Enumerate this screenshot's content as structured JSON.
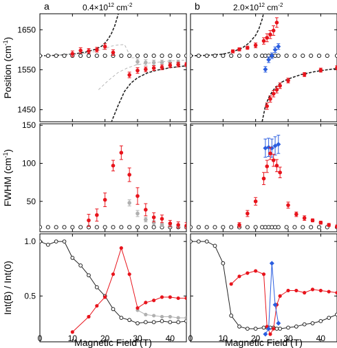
{
  "chart_data": {
    "type": "scatter",
    "xlabel": "Magnetic Field (T)",
    "xlim": [
      0,
      45
    ],
    "xticks": [
      0,
      10,
      20,
      30,
      40
    ],
    "colors": {
      "red": "#e8141c",
      "blue": "#2b5ee0",
      "gray": "#b0b0b0",
      "black": "#222222"
    },
    "panels": [
      {
        "col": 0,
        "label": "a",
        "density": "0.4×10",
        "density_exp": "12",
        "density_unit": " cm",
        "density_unit_exp": "-2"
      },
      {
        "col": 1,
        "label": "b",
        "density": "2.0×10",
        "density_exp": "12",
        "density_unit": " cm",
        "density_unit_exp": "-2"
      }
    ],
    "rows": [
      {
        "id": "position",
        "ylabel": "Position (cm",
        "ylabel_exp": "-1",
        "ylabel_end": ")",
        "ylim": [
          1420,
          1690
        ],
        "yticks": [
          1450,
          1550,
          1650
        ]
      },
      {
        "id": "fwhm",
        "ylabel": "FWHM (cm",
        "ylabel_exp": "-1",
        "ylabel_end": ")",
        "ylim": [
          10,
          152
        ],
        "yticks": [
          50,
          100,
          150
        ]
      },
      {
        "id": "int",
        "ylabel": "Int(B) / Int(0)",
        "ylabel_exp": "",
        "ylabel_end": "",
        "ylim": [
          0.08,
          1.07
        ],
        "yticks": [
          0.5,
          1.0
        ],
        "ytick_labels": [
          "0.5",
          "1.0"
        ]
      }
    ],
    "series": [
      {
        "row": 0,
        "col": 0,
        "kind": "dashed",
        "color": "black",
        "x": [
          0,
          5,
          10,
          14,
          17,
          19,
          20,
          21,
          22,
          23,
          24,
          25,
          25.5
        ],
        "y": [
          1585,
          1586,
          1589,
          1594,
          1601,
          1609,
          1617,
          1627,
          1641,
          1660,
          1687,
          1725,
          1760
        ]
      },
      {
        "row": 0,
        "col": 0,
        "kind": "dashed",
        "color": "black",
        "x": [
          20,
          21,
          22,
          24,
          26,
          28,
          30,
          33,
          36,
          40,
          45
        ],
        "y": [
          1380,
          1406,
          1420,
          1460,
          1496,
          1517,
          1530,
          1542,
          1549,
          1555,
          1560
        ]
      },
      {
        "row": 0,
        "col": 0,
        "kind": "thin-dashed",
        "color": "gray",
        "x": [
          0,
          10,
          15,
          18,
          20,
          22,
          24,
          26,
          28,
          30
        ],
        "y": [
          1585,
          1588,
          1592,
          1598,
          1603,
          1609,
          1612,
          1613,
          1580,
          1580
        ]
      },
      {
        "row": 0,
        "col": 0,
        "kind": "thin-dashed",
        "color": "gray",
        "x": [
          18,
          21,
          24,
          27,
          30,
          35,
          40,
          45
        ],
        "y": [
          1500,
          1523,
          1543,
          1555,
          1563,
          1568,
          1572,
          1574
        ]
      },
      {
        "row": 0,
        "col": 0,
        "kind": "open",
        "color": "black",
        "x": [
          0,
          2.5,
          5,
          7.5,
          10,
          12.5,
          15,
          17.5,
          20,
          22.5,
          25,
          27.5,
          30,
          32.5,
          35,
          37.5,
          40,
          42.5,
          45
        ],
        "y": [
          1585,
          1585,
          1585,
          1585,
          1585,
          1585,
          1585,
          1585,
          1585,
          1585,
          1585,
          1585,
          1585,
          1585,
          1585,
          1585,
          1585,
          1585,
          1585
        ]
      },
      {
        "row": 0,
        "col": 0,
        "kind": "errpoints",
        "color": "gray",
        "x": [
          30,
          32.5,
          35,
          37.5,
          40,
          42.5
        ],
        "y": [
          1570,
          1568,
          1568,
          1568,
          1568,
          1568
        ],
        "err": [
          7,
          7,
          6,
          6,
          6,
          6
        ]
      },
      {
        "row": 0,
        "col": 0,
        "kind": "errpoints",
        "color": "red",
        "x": [
          10,
          12.5,
          15,
          17.5,
          20,
          22.5
        ],
        "y": [
          1590,
          1598,
          1597,
          1600,
          1608,
          1593
        ],
        "err": [
          7,
          7,
          6,
          6,
          7,
          7
        ]
      },
      {
        "row": 0,
        "col": 0,
        "kind": "errpoints",
        "color": "red",
        "x": [
          27.5,
          30,
          32.5,
          35,
          37.5,
          40,
          42.5,
          45
        ],
        "y": [
          1537,
          1548,
          1551,
          1554,
          1556,
          1561,
          1563,
          1563
        ],
        "err": [
          7,
          7,
          6,
          6,
          6,
          6,
          6,
          5
        ]
      },
      {
        "row": 0,
        "col": 1,
        "kind": "dashed",
        "color": "black",
        "x": [
          0,
          5,
          10,
          13,
          16,
          18,
          20,
          21,
          22,
          23,
          23.5
        ],
        "y": [
          1585,
          1586,
          1589,
          1595,
          1605,
          1617,
          1636,
          1652,
          1676,
          1710,
          1740
        ]
      },
      {
        "row": 0,
        "col": 1,
        "kind": "dashed",
        "color": "black",
        "x": [
          22,
          23,
          24,
          25,
          26,
          28,
          30,
          34,
          38,
          42,
          45
        ],
        "y": [
          1420,
          1459,
          1480,
          1494,
          1505,
          1519,
          1527,
          1538,
          1545,
          1550,
          1553
        ]
      },
      {
        "row": 0,
        "col": 1,
        "kind": "open",
        "color": "black",
        "x": [
          0,
          2.5,
          5,
          7.5,
          10,
          12.5,
          15,
          17.5,
          20,
          22,
          23,
          24,
          25,
          26,
          27,
          29.5,
          32,
          34.5,
          37,
          39.5,
          42,
          45
        ],
        "y": [
          1585,
          1585,
          1585,
          1585,
          1585,
          1585,
          1585,
          1585,
          1585,
          1585,
          1585,
          1585,
          1585,
          1585,
          1585,
          1585,
          1585,
          1585,
          1585,
          1585,
          1585,
          1585
        ]
      },
      {
        "row": 0,
        "col": 1,
        "kind": "errpoints",
        "color": "red",
        "x": [
          13,
          15,
          17.5,
          20,
          22.5,
          23.5,
          24.5,
          25.5,
          26.5
        ],
        "y": [
          1596,
          1601,
          1605,
          1611,
          1622,
          1630,
          1638,
          1648,
          1668
        ],
        "err": [
          4,
          4,
          4,
          6,
          8,
          10,
          10,
          12,
          12
        ]
      },
      {
        "row": 0,
        "col": 1,
        "kind": "errpoints",
        "color": "blue",
        "x": [
          23,
          24,
          25,
          26,
          27
        ],
        "y": [
          1551,
          1575,
          1585,
          1600,
          1608
        ],
        "err": [
          7,
          7,
          7,
          7,
          7
        ]
      },
      {
        "row": 0,
        "col": 1,
        "kind": "errpoints",
        "color": "red",
        "x": [
          23.5,
          24.5,
          25.5,
          26.5,
          27.5,
          30,
          35,
          40,
          45
        ],
        "y": [
          1459,
          1477,
          1490,
          1500,
          1510,
          1523,
          1538,
          1549,
          1555
        ],
        "err": [
          8,
          8,
          8,
          8,
          7,
          6,
          5,
          5,
          5
        ]
      },
      {
        "row": 1,
        "col": 0,
        "kind": "open",
        "color": "black",
        "x": [
          0,
          2.5,
          5,
          7.5,
          10,
          12.5,
          15,
          17.5,
          20,
          22.5,
          25,
          27.5,
          30,
          32.5,
          35,
          37.5,
          40,
          42.5,
          45
        ],
        "y": [
          16,
          16,
          16,
          16,
          16,
          16,
          16,
          16,
          16,
          16,
          16,
          16,
          16,
          16,
          16,
          16,
          16,
          16,
          16
        ]
      },
      {
        "row": 1,
        "col": 0,
        "kind": "errpoints",
        "color": "gray",
        "x": [
          27.5,
          30,
          32.5,
          35,
          37.5,
          40,
          42.5,
          45
        ],
        "y": [
          48,
          34,
          26,
          22,
          19,
          18,
          17,
          17
        ],
        "err": [
          4,
          4,
          3,
          3,
          2,
          2,
          2,
          2
        ]
      },
      {
        "row": 1,
        "col": 0,
        "kind": "errpoints",
        "color": "red",
        "x": [
          15,
          17.5,
          20,
          22.5,
          25,
          27.5,
          30,
          32.5,
          35,
          37.5,
          40,
          42.5,
          45
        ],
        "y": [
          25,
          32,
          52,
          97,
          114,
          85,
          57,
          39,
          29,
          27,
          21,
          19,
          18
        ],
        "err": [
          8,
          8,
          9,
          7,
          9,
          9,
          11,
          8,
          6,
          5,
          4,
          4,
          4
        ]
      },
      {
        "row": 1,
        "col": 1,
        "kind": "open",
        "color": "black",
        "x": [
          0,
          2.5,
          5,
          7.5,
          10,
          12.5,
          15,
          17.5,
          20,
          22,
          23,
          24,
          25,
          26,
          27,
          29.5,
          32,
          34.5,
          37,
          39.5,
          42,
          45
        ],
        "y": [
          16,
          16,
          16,
          16,
          16,
          16,
          16,
          16,
          16,
          16,
          16,
          16,
          16,
          16,
          16,
          16,
          16,
          16,
          16,
          16,
          16,
          16
        ]
      },
      {
        "row": 1,
        "col": 1,
        "kind": "errpoints",
        "color": "blue",
        "x": [
          23,
          24,
          25,
          26,
          27
        ],
        "y": [
          120,
          121,
          120,
          123,
          125
        ],
        "err": [
          12,
          12,
          12,
          12,
          12
        ]
      },
      {
        "row": 1,
        "col": 1,
        "kind": "errpoints",
        "color": "red",
        "x": [
          15,
          17.5,
          20,
          22.5,
          23.5,
          24.5,
          25.5,
          26.5,
          27.5,
          30,
          32.5,
          35,
          37.5,
          40,
          42.5,
          45
        ],
        "y": [
          19,
          34,
          50,
          80,
          96,
          113,
          104,
          97,
          88,
          45,
          33,
          28,
          25,
          22,
          19,
          17
        ],
        "err": [
          3,
          4,
          5,
          8,
          8,
          8,
          8,
          8,
          7,
          4,
          3,
          3,
          2,
          2,
          2,
          2
        ]
      },
      {
        "row": 2,
        "col": 0,
        "kind": "line-open",
        "color": "black",
        "x": [
          0,
          2.5,
          5,
          7.5,
          10,
          12.5,
          15,
          17.5,
          20,
          22.5,
          25,
          27.5,
          30,
          32.5,
          35,
          37.5,
          40,
          42.5,
          45
        ],
        "y": [
          1.0,
          0.97,
          1.0,
          1.0,
          0.85,
          0.78,
          0.69,
          0.58,
          0.5,
          0.38,
          0.3,
          0.28,
          0.25,
          0.26,
          0.26,
          0.27,
          0.26,
          0.26,
          0.27
        ]
      },
      {
        "row": 2,
        "col": 0,
        "kind": "line-filled",
        "color": "gray",
        "x": [
          30,
          32.5,
          35,
          37.5,
          40,
          42.5,
          45
        ],
        "y": [
          0.37,
          0.33,
          0.32,
          0.31,
          0.31,
          0.3,
          0.3
        ]
      },
      {
        "row": 2,
        "col": 0,
        "kind": "line-filled",
        "color": "red",
        "x": [
          10,
          15,
          17.5,
          20,
          22.5,
          25,
          27.5,
          30,
          32.5,
          35,
          37.5,
          40,
          42.5,
          45
        ],
        "y": [
          0.17,
          0.31,
          0.41,
          0.49,
          0.7,
          0.94,
          0.7,
          0.39,
          0.44,
          0.46,
          0.49,
          0.49,
          0.48,
          0.48
        ]
      },
      {
        "row": 2,
        "col": 1,
        "kind": "line-open",
        "color": "black",
        "x": [
          0,
          2.5,
          5,
          7.5,
          10,
          12.5,
          15,
          17.5,
          20,
          22.5,
          23.5,
          24.5,
          25.5,
          26.5,
          27.5,
          30,
          32.5,
          35,
          37.5,
          40,
          42.5,
          45
        ],
        "y": [
          1.0,
          1.0,
          1.0,
          0.96,
          0.8,
          0.32,
          0.22,
          0.2,
          0.2,
          0.21,
          0.21,
          0.21,
          0.21,
          0.2,
          0.2,
          0.21,
          0.22,
          0.24,
          0.25,
          0.27,
          0.3,
          0.33
        ]
      },
      {
        "row": 2,
        "col": 1,
        "kind": "line-filled",
        "color": "red",
        "x": [
          12.5,
          15,
          17.5,
          20,
          22.5,
          23.5,
          24.5,
          25.5,
          26.5,
          27.5,
          30,
          32.5,
          35,
          37.5,
          40,
          42.5,
          45
        ],
        "y": [
          0.61,
          0.68,
          0.71,
          0.73,
          0.7,
          0.22,
          0.15,
          0.2,
          0.42,
          0.5,
          0.55,
          0.55,
          0.53,
          0.56,
          0.55,
          0.54,
          0.53
        ]
      },
      {
        "row": 2,
        "col": 1,
        "kind": "line-diamond",
        "color": "blue",
        "x": [
          23,
          24,
          25,
          26,
          27
        ],
        "y": [
          0.15,
          0.2,
          0.8,
          0.42,
          0.25
        ]
      }
    ]
  }
}
